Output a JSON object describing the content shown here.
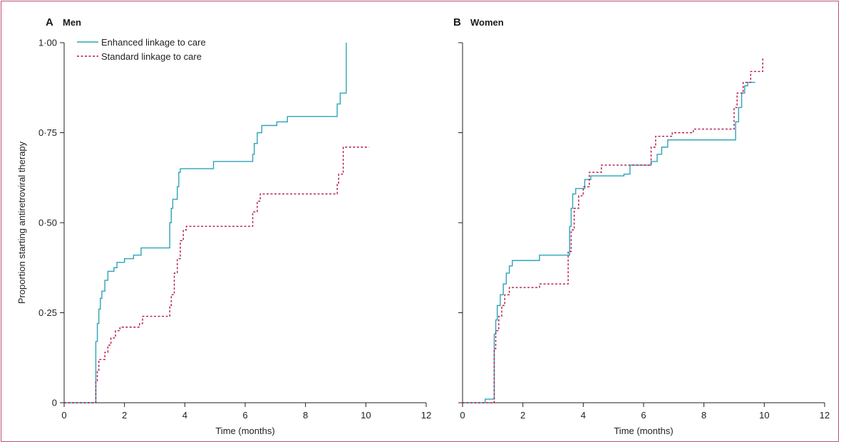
{
  "chart_data": [
    {
      "type": "line",
      "panel_letter": "A",
      "title": "Men",
      "xlabel": "Time (months)",
      "ylabel": "Proportion starting antiretroviral therapy",
      "xlim": [
        0,
        12
      ],
      "ylim": [
        0,
        1
      ],
      "x_ticks": [
        "0",
        "2",
        "4",
        "6",
        "8",
        "10",
        "12"
      ],
      "y_ticks": [
        "0",
        "0·25",
        "0·50",
        "0·75",
        "1·00"
      ],
      "legend": {
        "position": "top-left",
        "entries": [
          "Enhanced linkage to care",
          "Standard linkage to care"
        ]
      },
      "series": [
        {
          "name": "Enhanced linkage to care",
          "color": "#2fa3b8",
          "style": "solid",
          "steps": [
            [
              0,
              0
            ],
            [
              1.05,
              0
            ],
            [
              1.05,
              0.17
            ],
            [
              1.1,
              0.22
            ],
            [
              1.15,
              0.26
            ],
            [
              1.2,
              0.29
            ],
            [
              1.25,
              0.31
            ],
            [
              1.35,
              0.34
            ],
            [
              1.45,
              0.365
            ],
            [
              1.65,
              0.375
            ],
            [
              1.75,
              0.39
            ],
            [
              2.0,
              0.4
            ],
            [
              2.3,
              0.41
            ],
            [
              2.55,
              0.43
            ],
            [
              3.5,
              0.43
            ],
            [
              3.5,
              0.5
            ],
            [
              3.55,
              0.54
            ],
            [
              3.6,
              0.565
            ],
            [
              3.75,
              0.6
            ],
            [
              3.8,
              0.64
            ],
            [
              3.85,
              0.65
            ],
            [
              4.95,
              0.67
            ],
            [
              6.25,
              0.67
            ],
            [
              6.25,
              0.69
            ],
            [
              6.3,
              0.72
            ],
            [
              6.4,
              0.75
            ],
            [
              6.55,
              0.77
            ],
            [
              7.05,
              0.78
            ],
            [
              7.4,
              0.795
            ],
            [
              9.05,
              0.795
            ],
            [
              9.05,
              0.83
            ],
            [
              9.15,
              0.86
            ],
            [
              9.35,
              0.86
            ],
            [
              9.35,
              1.0
            ]
          ]
        },
        {
          "name": "Standard linkage to care",
          "color": "#b5174b",
          "style": "dashed",
          "steps": [
            [
              0,
              0
            ],
            [
              1.05,
              0
            ],
            [
              1.05,
              0.06
            ],
            [
              1.1,
              0.09
            ],
            [
              1.15,
              0.12
            ],
            [
              1.35,
              0.14
            ],
            [
              1.45,
              0.16
            ],
            [
              1.55,
              0.18
            ],
            [
              1.7,
              0.2
            ],
            [
              1.85,
              0.21
            ],
            [
              2.5,
              0.22
            ],
            [
              2.6,
              0.24
            ],
            [
              3.5,
              0.24
            ],
            [
              3.5,
              0.27
            ],
            [
              3.55,
              0.3
            ],
            [
              3.65,
              0.36
            ],
            [
              3.75,
              0.4
            ],
            [
              3.85,
              0.45
            ],
            [
              3.95,
              0.48
            ],
            [
              4.05,
              0.49
            ],
            [
              6.25,
              0.49
            ],
            [
              6.25,
              0.53
            ],
            [
              6.4,
              0.56
            ],
            [
              6.5,
              0.58
            ],
            [
              9.05,
              0.58
            ],
            [
              9.05,
              0.61
            ],
            [
              9.1,
              0.635
            ],
            [
              9.25,
              0.635
            ],
            [
              9.25,
              0.71
            ],
            [
              10.1,
              0.71
            ]
          ]
        }
      ]
    },
    {
      "type": "line",
      "panel_letter": "B",
      "title": "Women",
      "xlabel": "Time (months)",
      "ylabel": "",
      "xlim": [
        0,
        12
      ],
      "ylim": [
        0,
        1
      ],
      "x_ticks": [
        "0",
        "2",
        "4",
        "6",
        "8",
        "10",
        "12"
      ],
      "y_ticks": [],
      "series": [
        {
          "name": "Enhanced linkage to care",
          "color": "#2fa3b8",
          "style": "solid",
          "steps": [
            [
              0,
              0
            ],
            [
              0.75,
              0
            ],
            [
              0.75,
              0.01
            ],
            [
              1.05,
              0.01
            ],
            [
              1.05,
              0.19
            ],
            [
              1.1,
              0.23
            ],
            [
              1.15,
              0.27
            ],
            [
              1.25,
              0.3
            ],
            [
              1.35,
              0.33
            ],
            [
              1.45,
              0.36
            ],
            [
              1.55,
              0.38
            ],
            [
              1.65,
              0.395
            ],
            [
              2.45,
              0.395
            ],
            [
              2.55,
              0.41
            ],
            [
              3.55,
              0.41
            ],
            [
              3.55,
              0.49
            ],
            [
              3.6,
              0.54
            ],
            [
              3.65,
              0.58
            ],
            [
              3.75,
              0.595
            ],
            [
              4.05,
              0.62
            ],
            [
              4.25,
              0.63
            ],
            [
              5.35,
              0.635
            ],
            [
              5.55,
              0.66
            ],
            [
              6.25,
              0.66
            ],
            [
              6.25,
              0.67
            ],
            [
              6.45,
              0.69
            ],
            [
              6.6,
              0.71
            ],
            [
              6.8,
              0.73
            ],
            [
              9.05,
              0.73
            ],
            [
              9.05,
              0.78
            ],
            [
              9.15,
              0.82
            ],
            [
              9.25,
              0.86
            ],
            [
              9.35,
              0.88
            ],
            [
              9.45,
              0.89
            ],
            [
              9.7,
              0.89
            ]
          ]
        },
        {
          "name": "Standard linkage to care",
          "color": "#b5174b",
          "style": "dashed",
          "steps": [
            [
              0,
              0
            ],
            [
              1.05,
              0
            ],
            [
              1.05,
              0.15
            ],
            [
              1.1,
              0.2
            ],
            [
              1.2,
              0.24
            ],
            [
              1.3,
              0.27
            ],
            [
              1.4,
              0.3
            ],
            [
              1.55,
              0.32
            ],
            [
              2.4,
              0.32
            ],
            [
              2.55,
              0.33
            ],
            [
              3.5,
              0.33
            ],
            [
              3.5,
              0.42
            ],
            [
              3.6,
              0.48
            ],
            [
              3.7,
              0.54
            ],
            [
              3.85,
              0.575
            ],
            [
              4.0,
              0.6
            ],
            [
              4.2,
              0.64
            ],
            [
              4.6,
              0.66
            ],
            [
              6.25,
              0.66
            ],
            [
              6.25,
              0.71
            ],
            [
              6.4,
              0.74
            ],
            [
              6.95,
              0.75
            ],
            [
              7.65,
              0.76
            ],
            [
              9.0,
              0.76
            ],
            [
              9.0,
              0.82
            ],
            [
              9.1,
              0.86
            ],
            [
              9.3,
              0.89
            ],
            [
              9.55,
              0.92
            ],
            [
              9.95,
              0.92
            ],
            [
              9.95,
              0.96
            ]
          ]
        }
      ]
    }
  ]
}
